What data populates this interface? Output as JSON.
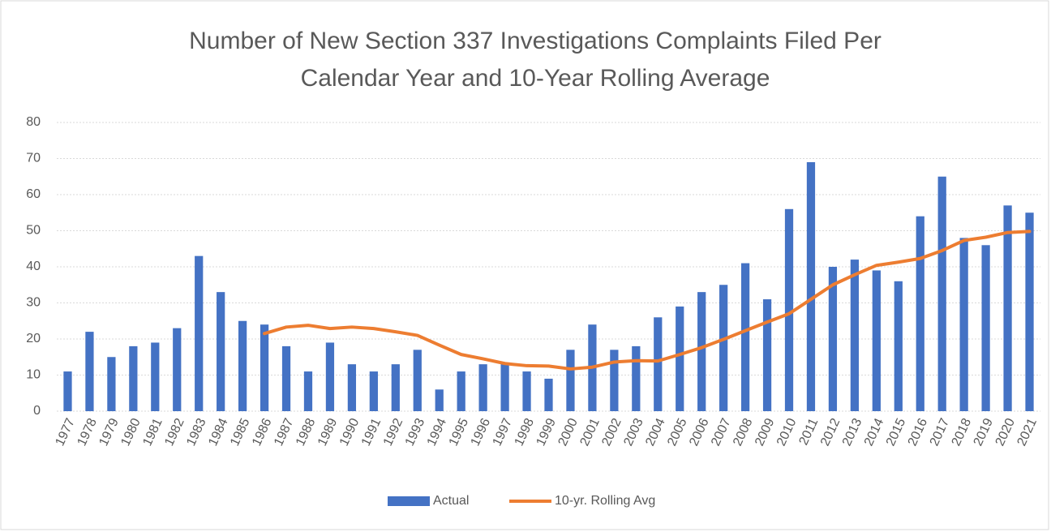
{
  "chart_data": {
    "type": "bar",
    "title": [
      "Number of New Section 337 Investigations Complaints Filed Per",
      "Calendar Year and 10-Year Rolling Average"
    ],
    "categories": [
      "1977",
      "1978",
      "1979",
      "1980",
      "1981",
      "1982",
      "1983",
      "1984",
      "1985",
      "1986",
      "1987",
      "1988",
      "1989",
      "1990",
      "1991",
      "1992",
      "1993",
      "1994",
      "1995",
      "1996",
      "1997",
      "1998",
      "1999",
      "2000",
      "2001",
      "2002",
      "2003",
      "2004",
      "2005",
      "2006",
      "2007",
      "2008",
      "2009",
      "2010",
      "2011",
      "2012",
      "2013",
      "2014",
      "2015",
      "2016",
      "2017",
      "2018",
      "2019",
      "2020",
      "2021"
    ],
    "series": [
      {
        "name": "Actual",
        "type": "bar",
        "color": "#4472c4",
        "values": [
          11,
          22,
          15,
          18,
          19,
          23,
          43,
          33,
          25,
          24,
          18,
          11,
          19,
          13,
          11,
          13,
          17,
          6,
          11,
          13,
          13,
          11,
          9,
          17,
          24,
          17,
          18,
          26,
          29,
          33,
          35,
          41,
          31,
          56,
          69,
          40,
          42,
          39,
          36,
          54,
          65,
          48,
          46,
          57,
          55
        ]
      },
      {
        "name": "10-yr. Rolling Avg",
        "type": "line",
        "color": "#ed7d31",
        "values": [
          null,
          null,
          null,
          null,
          null,
          null,
          null,
          null,
          null,
          21.5,
          23.3,
          23.8,
          22.9,
          23.3,
          22.9,
          22,
          21,
          18.3,
          15.7,
          14.5,
          13.2,
          12.6,
          12.5,
          11.7,
          12.2,
          13.6,
          14,
          13.9,
          15.7,
          17.6,
          19.9,
          22.3,
          24.7,
          27,
          31,
          35,
          37.8,
          40.4,
          41.3,
          42.3,
          44.5,
          47.3,
          48.2,
          49.5,
          49.8
        ]
      }
    ],
    "ylim": [
      0,
      80
    ],
    "yticks": [
      0,
      10,
      20,
      30,
      40,
      50,
      60,
      70,
      80
    ],
    "grid": true,
    "legend": "bottom"
  }
}
